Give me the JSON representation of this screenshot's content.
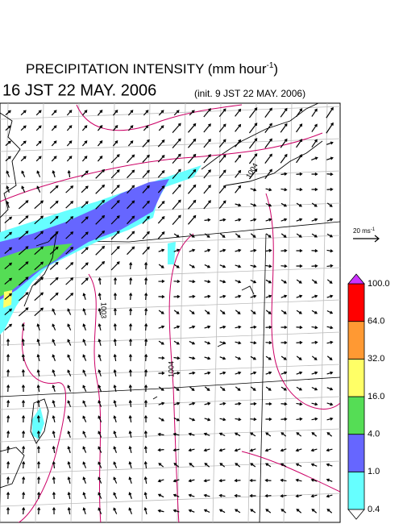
{
  "header": {
    "title": "PRECIPITATION INTENSITY (mm hour",
    "title_sup": "-1",
    "title_close": ")",
    "time": "16 JST 22 MAY. 2006",
    "init": "(init. 9 JST 22 MAY. 2006)"
  },
  "wind_scale": {
    "label": "20 ms",
    "label_sup": "-1"
  },
  "isobar_labels": [
    "1004",
    "1003",
    "1004"
  ],
  "colorbar": {
    "labels": [
      "0.4",
      "1.0",
      "4.0",
      "16.0",
      "32.0",
      "64.0",
      "100.0"
    ],
    "colors": [
      "#66ffff",
      "#6666ff",
      "#55dd55",
      "#ffff66",
      "#ff9933",
      "#ff0000"
    ],
    "over_color": "#cc33ff",
    "under_color": "#ffffff"
  }
}
